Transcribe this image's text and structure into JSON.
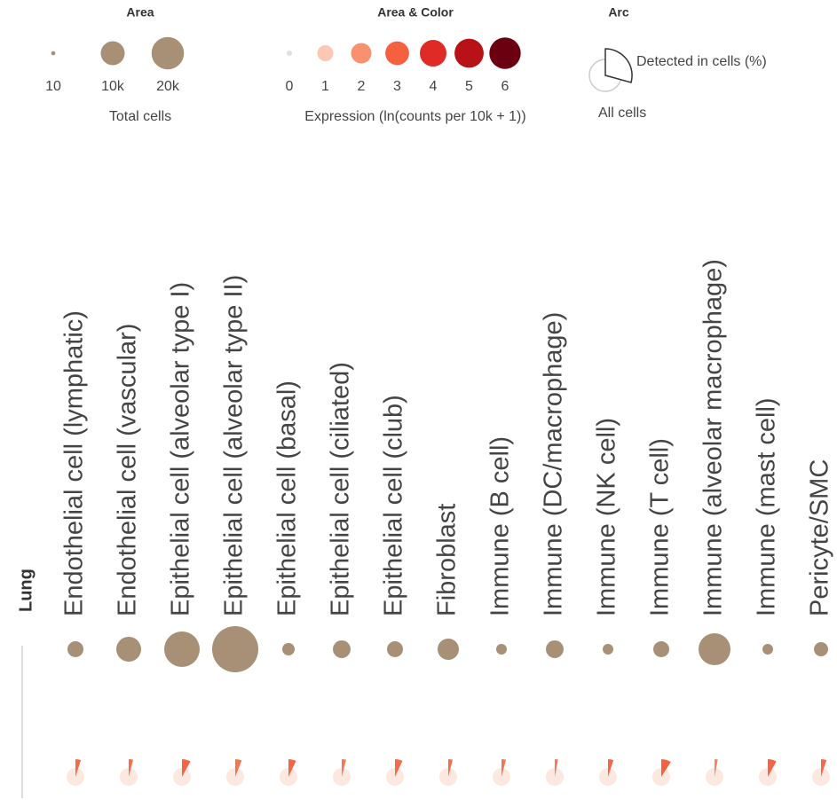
{
  "legend": {
    "area": {
      "title": "Area",
      "values": [
        {
          "value": 10,
          "label": "10"
        },
        {
          "value": 10000,
          "label": "10k"
        },
        {
          "value": 20000,
          "label": "20k"
        }
      ],
      "color": "#a89077",
      "caption": "Total cells"
    },
    "area_color": {
      "title": "Area & Color",
      "values": [
        0,
        1,
        2,
        3,
        4,
        5,
        6
      ],
      "colors": [
        "#e0e0e0",
        "#fcc7b3",
        "#f7916e",
        "#f5613f",
        "#e02a26",
        "#b81118",
        "#6a0010"
      ],
      "caption": "Expression (ln(counts per 10k + 1))"
    },
    "arc": {
      "title": "Arc",
      "detected_label": "Detected in cells (%)",
      "all_label": "All cells"
    }
  },
  "chart_data": {
    "type": "dotplot",
    "tissue": "Lung",
    "categories": [
      "Endothelial cell (lymphatic)",
      "Endothelial cell (vascular)",
      "Epithelial cell (alveolar type I)",
      "Epithelial cell (alveolar type II)",
      "Epithelial cell (basal)",
      "Epithelial cell (ciliated)",
      "Epithelial cell (club)",
      "Fibroblast",
      "Immune (B cell)",
      "Immune (DC/macrophage)",
      "Immune (NK cell)",
      "Immune (T cell)",
      "Immune (alveolar macrophage)",
      "Immune (mast cell)",
      "Pericyte/SMC"
    ],
    "total_cells": [
      3700,
      10900,
      24500,
      43600,
      1900,
      4800,
      3700,
      7600,
      1200,
      4800,
      1200,
      3700,
      19400,
      1200,
      2700
    ],
    "expression": [
      2.8,
      2.7,
      2.9,
      2.6,
      2.9,
      2.5,
      2.8,
      2.7,
      2.6,
      2.5,
      2.9,
      3,
      2.3,
      2.9,
      2.8
    ],
    "detected_pct": [
      5,
      4,
      8,
      6,
      7,
      4,
      7,
      4,
      4,
      3,
      5,
      9,
      3,
      8,
      5
    ]
  }
}
